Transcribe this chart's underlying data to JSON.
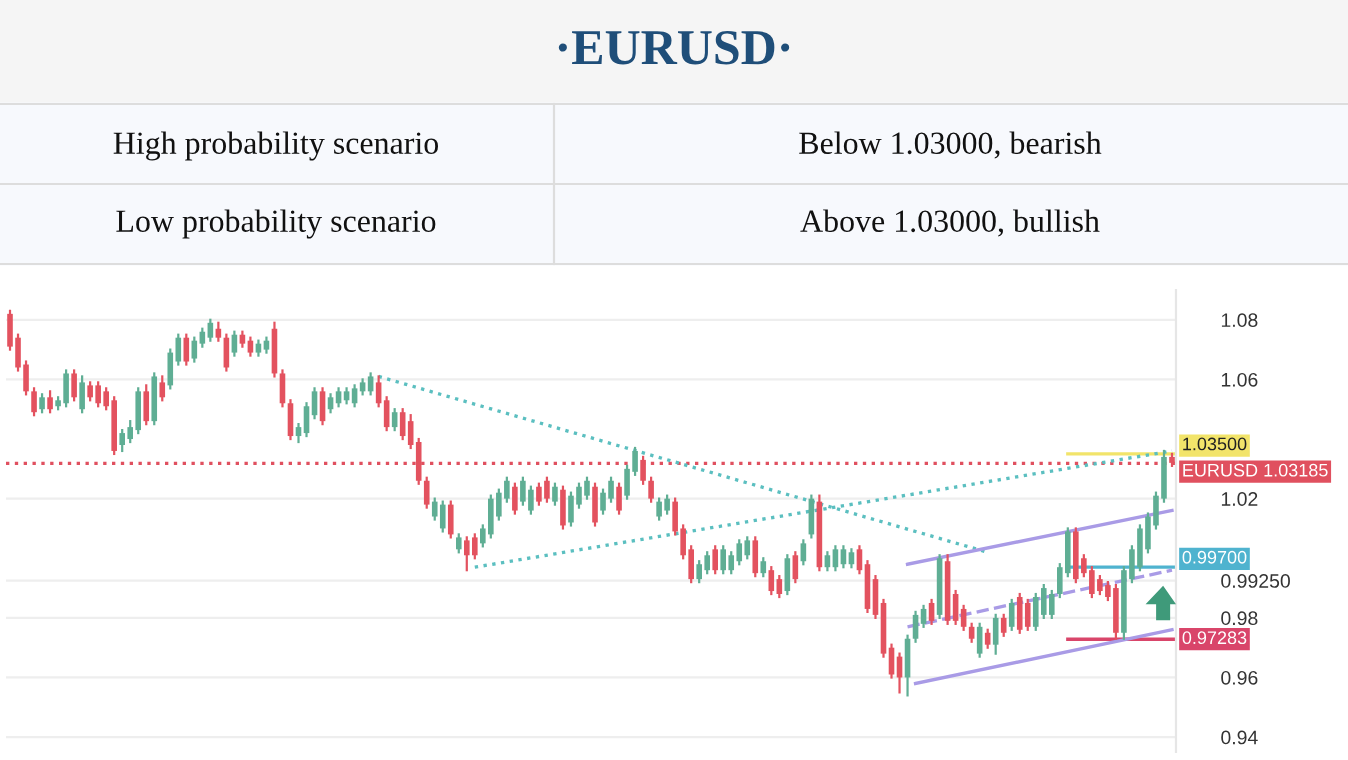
{
  "chart_data": {
    "type": "candlestick",
    "title": "·EURUSD·",
    "annotations": [
      "High probability scenario",
      "Below 1.03000, bearish",
      "Low probability scenario",
      "Above 1.03000, bullish"
    ],
    "categories": [
      null,
      null,
      null,
      null,
      null,
      null,
      null,
      null,
      null,
      null,
      null,
      null,
      null,
      null,
      null,
      null,
      null,
      null,
      null,
      null,
      null,
      null,
      null,
      null,
      null,
      null,
      null,
      null,
      null,
      null,
      null,
      null,
      null,
      null,
      null,
      null,
      null,
      null,
      null,
      null,
      null,
      null,
      null,
      null,
      null,
      null,
      null,
      null,
      null,
      null,
      null,
      null,
      null,
      null,
      null,
      null,
      null,
      null,
      null,
      null,
      null,
      null,
      null,
      null,
      null,
      null,
      null,
      null,
      null,
      null,
      null,
      null,
      null,
      null,
      null,
      null,
      null,
      null,
      null,
      null,
      null,
      null,
      null,
      null,
      null,
      null,
      null,
      null,
      null,
      null,
      null,
      null,
      null,
      null,
      null,
      null,
      null,
      null,
      null,
      null,
      null,
      null,
      null,
      null,
      null,
      null,
      null,
      null,
      null,
      null,
      null,
      null,
      null,
      null,
      null,
      null,
      null,
      null,
      null,
      null,
      null,
      null,
      null,
      null,
      null,
      null,
      null,
      null,
      null,
      null,
      null,
      null,
      null,
      null,
      null,
      null,
      null,
      null,
      null,
      null,
      null,
      null,
      null,
      null,
      null,
      null
    ],
    "ohlc": [
      [
        1.082,
        1.083,
        1.07,
        1.071
      ],
      [
        1.074,
        1.075,
        1.063,
        1.064
      ],
      [
        1.065,
        1.066,
        1.055,
        1.056
      ],
      [
        1.056,
        1.057,
        1.048,
        1.049
      ],
      [
        1.05,
        1.055,
        1.049,
        1.054
      ],
      [
        1.054,
        1.056,
        1.049,
        1.05
      ],
      [
        1.051,
        1.054,
        1.05,
        1.053
      ],
      [
        1.052,
        1.063,
        1.051,
        1.062
      ],
      [
        1.062,
        1.063,
        1.053,
        1.054
      ],
      [
        1.05,
        1.061,
        1.049,
        1.059
      ],
      [
        1.058,
        1.059,
        1.053,
        1.054
      ],
      [
        1.058,
        1.059,
        1.051,
        1.052
      ],
      [
        1.056,
        1.057,
        1.05,
        1.051
      ],
      [
        1.053,
        1.054,
        1.035,
        1.036
      ],
      [
        1.038,
        1.043,
        1.036,
        1.042
      ],
      [
        1.04,
        1.046,
        1.039,
        1.044
      ],
      [
        1.043,
        1.057,
        1.042,
        1.056
      ],
      [
        1.056,
        1.058,
        1.045,
        1.046
      ],
      [
        1.046,
        1.062,
        1.045,
        1.061
      ],
      [
        1.059,
        1.061,
        1.053,
        1.054
      ],
      [
        1.058,
        1.07,
        1.057,
        1.069
      ],
      [
        1.066,
        1.075,
        1.065,
        1.074
      ],
      [
        1.074,
        1.075,
        1.065,
        1.066
      ],
      [
        1.067,
        1.074,
        1.066,
        1.073
      ],
      [
        1.072,
        1.077,
        1.071,
        1.076
      ],
      [
        1.074,
        1.08,
        1.073,
        1.079
      ],
      [
        1.077,
        1.079,
        1.073,
        1.074
      ],
      [
        1.074,
        1.075,
        1.063,
        1.064
      ],
      [
        1.069,
        1.076,
        1.068,
        1.075
      ],
      [
        1.075,
        1.076,
        1.071,
        1.072
      ],
      [
        1.073,
        1.074,
        1.068,
        1.069
      ],
      [
        1.069,
        1.073,
        1.068,
        1.072
      ],
      [
        1.07,
        1.074,
        1.069,
        1.073
      ],
      [
        1.077,
        1.079,
        1.061,
        1.062
      ],
      [
        1.062,
        1.063,
        1.051,
        1.052
      ],
      [
        1.052,
        1.053,
        1.04,
        1.041
      ],
      [
        1.041,
        1.045,
        1.039,
        1.044
      ],
      [
        1.042,
        1.052,
        1.041,
        1.051
      ],
      [
        1.048,
        1.057,
        1.047,
        1.056
      ],
      [
        1.056,
        1.057,
        1.045,
        1.046
      ],
      [
        1.05,
        1.055,
        1.049,
        1.054
      ],
      [
        1.052,
        1.057,
        1.051,
        1.056
      ],
      [
        1.053,
        1.057,
        1.052,
        1.056
      ],
      [
        1.052,
        1.058,
        1.051,
        1.057
      ],
      [
        1.056,
        1.06,
        1.055,
        1.059
      ],
      [
        1.056,
        1.062,
        1.055,
        1.061
      ],
      [
        1.059,
        1.061,
        1.051,
        1.052
      ],
      [
        1.053,
        1.054,
        1.043,
        1.044
      ],
      [
        1.044,
        1.05,
        1.043,
        1.049
      ],
      [
        1.049,
        1.05,
        1.04,
        1.041
      ],
      [
        1.046,
        1.048,
        1.037,
        1.038
      ],
      [
        1.039,
        1.04,
        1.025,
        1.026
      ],
      [
        1.026,
        1.027,
        1.017,
        1.018
      ],
      [
        1.014,
        1.02,
        1.013,
        1.019
      ],
      [
        1.01,
        1.019,
        1.009,
        1.018
      ],
      [
        1.018,
        1.019,
        1.007,
        1.008
      ],
      [
        1.003,
        1.008,
        1.002,
        1.007
      ],
      [
        1.006,
        1.007,
        0.996,
        1.001
      ],
      [
        1.007,
        1.008,
        1.0,
        1.001
      ],
      [
        1.005,
        1.011,
        1.004,
        1.01
      ],
      [
        1.008,
        1.021,
        1.007,
        1.02
      ],
      [
        1.014,
        1.023,
        1.013,
        1.022
      ],
      [
        1.02,
        1.027,
        1.019,
        1.026
      ],
      [
        1.024,
        1.025,
        1.015,
        1.016
      ],
      [
        1.019,
        1.027,
        1.018,
        1.026
      ],
      [
        1.016,
        1.024,
        1.015,
        1.023
      ],
      [
        1.024,
        1.025,
        1.018,
        1.019
      ],
      [
        1.026,
        1.027,
        1.019,
        1.02
      ],
      [
        1.019,
        1.025,
        1.018,
        1.024
      ],
      [
        1.023,
        1.024,
        1.01,
        1.011
      ],
      [
        1.012,
        1.022,
        1.011,
        1.021
      ],
      [
        1.018,
        1.025,
        1.017,
        1.024
      ],
      [
        1.021,
        1.027,
        1.02,
        1.026
      ],
      [
        1.024,
        1.025,
        1.011,
        1.012
      ],
      [
        1.016,
        1.023,
        1.015,
        1.022
      ],
      [
        1.02,
        1.027,
        1.019,
        1.026
      ],
      [
        1.024,
        1.025,
        1.015,
        1.016
      ],
      [
        1.021,
        1.031,
        1.02,
        1.03
      ],
      [
        1.029,
        1.037,
        1.028,
        1.036
      ],
      [
        1.033,
        1.034,
        1.025,
        1.026
      ],
      [
        1.026,
        1.027,
        1.019,
        1.02
      ],
      [
        1.014,
        1.02,
        1.013,
        1.019
      ],
      [
        1.016,
        1.021,
        1.015,
        1.02
      ],
      [
        1.019,
        1.02,
        1.008,
        1.009
      ],
      [
        1.01,
        1.011,
        1.0,
        1.001
      ],
      [
        1.003,
        1.004,
        0.992,
        0.993
      ],
      [
        0.993,
        0.999,
        0.992,
        0.998
      ],
      [
        0.996,
        1.002,
        0.995,
        1.001
      ],
      [
        1.003,
        1.004,
        0.995,
        0.996
      ],
      [
        0.996,
        1.004,
        0.995,
        1.003
      ],
      [
        0.996,
        1.002,
        0.995,
        1.001
      ],
      [
        0.999,
        1.006,
        0.998,
        1.005
      ],
      [
        1.001,
        1.007,
        1.0,
        1.006
      ],
      [
        1.006,
        1.007,
        0.994,
        0.995
      ],
      [
        0.995,
        1.0,
        0.994,
        0.999
      ],
      [
        0.996,
        0.997,
        0.988,
        0.989
      ],
      [
        0.993,
        0.994,
        0.987,
        0.988
      ],
      [
        0.989,
        1.001,
        0.988,
        1.0
      ],
      [
        1.001,
        1.002,
        0.992,
        0.993
      ],
      [
        0.999,
        1.006,
        0.998,
        1.005
      ],
      [
        1.008,
        1.021,
        1.007,
        1.02
      ],
      [
        1.019,
        1.021,
        0.996,
        0.997
      ],
      [
        0.997,
        1.002,
        0.996,
        1.001
      ],
      [
        0.997,
        1.004,
        0.996,
        1.003
      ],
      [
        0.998,
        1.004,
        0.997,
        1.003
      ],
      [
        0.998,
        1.003,
        0.997,
        1.002
      ],
      [
        1.003,
        1.004,
        0.995,
        0.996
      ],
      [
        0.998,
        0.999,
        0.982,
        0.983
      ],
      [
        0.993,
        0.994,
        0.98,
        0.981
      ],
      [
        0.985,
        0.986,
        0.967,
        0.968
      ],
      [
        0.97,
        0.971,
        0.96,
        0.961
      ],
      [
        0.967,
        0.968,
        0.955,
        0.96
      ],
      [
        0.96,
        0.974,
        0.954,
        0.973
      ],
      [
        0.973,
        0.982,
        0.972,
        0.981
      ],
      [
        0.978,
        0.984,
        0.977,
        0.983
      ],
      [
        0.985,
        0.986,
        0.978,
        0.979
      ],
      [
        0.981,
        1.001,
        0.98,
        1.0
      ],
      [
        0.999,
        1.001,
        0.978,
        0.979
      ],
      [
        0.988,
        0.989,
        0.978,
        0.979
      ],
      [
        0.983,
        0.984,
        0.976,
        0.977
      ],
      [
        0.977,
        0.978,
        0.972,
        0.973
      ],
      [
        0.968,
        0.978,
        0.967,
        0.977
      ],
      [
        0.975,
        0.976,
        0.97,
        0.971
      ],
      [
        0.971,
        0.981,
        0.968,
        0.98
      ],
      [
        0.98,
        0.981,
        0.974,
        0.975
      ],
      [
        0.977,
        0.986,
        0.976,
        0.985
      ],
      [
        0.987,
        0.988,
        0.975,
        0.976
      ],
      [
        0.985,
        0.986,
        0.976,
        0.977
      ],
      [
        0.977,
        0.988,
        0.976,
        0.987
      ],
      [
        0.981,
        0.991,
        0.98,
        0.99
      ],
      [
        0.981,
        0.989,
        0.98,
        0.988
      ],
      [
        0.988,
        0.998,
        0.987,
        0.997
      ],
      [
        0.995,
        1.01,
        0.994,
        1.009
      ],
      [
        1.009,
        1.01,
        0.992,
        0.993
      ],
      [
        1.0,
        1.001,
        0.994,
        0.995
      ],
      [
        0.996,
        0.997,
        0.987,
        0.988
      ],
      [
        0.993,
        0.994,
        0.988,
        0.989
      ],
      [
        0.991,
        0.992,
        0.986,
        0.987
      ],
      [
        0.99,
        0.991,
        0.973,
        0.975
      ],
      [
        0.975,
        0.997,
        0.973,
        0.996
      ],
      [
        0.993,
        1.004,
        0.992,
        1.003
      ],
      [
        0.997,
        1.011,
        0.996,
        1.01
      ],
      [
        1.003,
        1.015,
        1.002,
        1.014
      ],
      [
        1.011,
        1.022,
        1.01,
        1.021
      ],
      [
        1.02,
        1.036,
        1.019,
        1.034
      ],
      [
        1.034,
        1.035,
        1.031,
        1.032
      ]
    ],
    "series": [
      {
        "type": "line",
        "color": "#5bbfc0",
        "line_style": "dotted",
        "values": [
          null,
          null,
          null,
          null,
          null,
          null,
          null,
          null,
          null,
          null,
          null,
          null,
          null,
          null,
          null,
          null,
          null,
          null,
          null,
          null,
          null,
          null,
          null,
          null,
          null,
          null,
          null,
          null,
          null,
          null,
          null,
          null,
          null,
          null,
          null,
          null,
          null,
          null,
          null,
          null,
          null,
          null,
          null,
          null,
          null,
          null,
          1.061,
          null,
          null,
          null,
          null,
          null,
          null,
          null,
          null,
          null,
          null,
          null,
          null,
          null,
          null,
          null,
          null,
          null,
          null,
          null,
          null,
          null,
          null,
          null,
          null,
          null,
          null,
          null,
          null,
          null,
          null,
          null,
          null,
          null,
          null,
          null,
          null,
          null,
          null,
          null,
          null,
          null,
          null,
          null,
          null,
          null,
          null,
          null,
          null,
          null,
          null,
          null,
          null,
          null,
          null,
          null,
          null,
          null,
          null,
          null,
          null,
          null,
          null,
          null,
          null,
          null,
          null,
          null,
          null,
          null,
          null,
          null,
          null,
          null,
          null,
          null,
          1.002,
          null,
          null,
          null,
          null,
          null,
          null,
          null,
          null,
          null,
          null,
          null,
          null,
          null,
          null,
          null,
          null,
          null,
          null,
          null,
          null,
          null,
          null,
          null
        ]
      },
      {
        "type": "line",
        "color": "#5bbfc0",
        "line_style": "dotted",
        "values": [
          null,
          null,
          null,
          null,
          null,
          null,
          null,
          null,
          null,
          null,
          null,
          null,
          null,
          null,
          null,
          null,
          null,
          null,
          null,
          null,
          null,
          null,
          null,
          null,
          null,
          null,
          null,
          null,
          null,
          null,
          null,
          null,
          null,
          null,
          null,
          null,
          null,
          null,
          null,
          null,
          null,
          null,
          null,
          null,
          null,
          null,
          null,
          null,
          null,
          null,
          null,
          null,
          null,
          null,
          null,
          null,
          null,
          null,
          0.997,
          null,
          null,
          null,
          null,
          null,
          null,
          null,
          null,
          null,
          null,
          null,
          null,
          null,
          null,
          null,
          null,
          null,
          null,
          null,
          null,
          null,
          null,
          null,
          null,
          null,
          null,
          null,
          null,
          null,
          null,
          null,
          null,
          null,
          null,
          null,
          null,
          null,
          null,
          null,
          null,
          null,
          null,
          null,
          null,
          null,
          null,
          null,
          null,
          null,
          null,
          null,
          null,
          null,
          null,
          null,
          null,
          null,
          null,
          null,
          null,
          null,
          null,
          null,
          null,
          null,
          null,
          null,
          null,
          null,
          null,
          null,
          null,
          null,
          null,
          null,
          null,
          null,
          null,
          null,
          null,
          null,
          null,
          null,
          null,
          null,
          null,
          1.036
        ]
      },
      {
        "type": "line",
        "color": "#a99be6",
        "line_style": "solid",
        "values": [
          null,
          null,
          null,
          null,
          null,
          null,
          null,
          null,
          null,
          null,
          null,
          null,
          null,
          null,
          null,
          null,
          null,
          null,
          null,
          null,
          null,
          null,
          null,
          null,
          null,
          null,
          null,
          null,
          null,
          null,
          null,
          null,
          null,
          null,
          null,
          null,
          null,
          null,
          null,
          null,
          null,
          null,
          null,
          null,
          null,
          null,
          null,
          null,
          null,
          null,
          null,
          null,
          null,
          null,
          null,
          null,
          null,
          null,
          null,
          null,
          null,
          null,
          null,
          null,
          null,
          null,
          null,
          null,
          null,
          null,
          null,
          null,
          null,
          null,
          null,
          null,
          null,
          null,
          null,
          null,
          null,
          null,
          null,
          null,
          null,
          null,
          null,
          null,
          null,
          null,
          null,
          null,
          null,
          null,
          null,
          null,
          null,
          null,
          null,
          null,
          null,
          null,
          null,
          null,
          null,
          null,
          null,
          null,
          null,
          null,
          null,
          null,
          0.998,
          null,
          null,
          null,
          null,
          null,
          null,
          null,
          null,
          null,
          null,
          null,
          null,
          null,
          null,
          null,
          null,
          null,
          null,
          null,
          null,
          null,
          null,
          null,
          null,
          null,
          null,
          null,
          null,
          null,
          null,
          null,
          null,
          1.016
        ]
      },
      {
        "type": "line",
        "color": "#a99be6",
        "line_style": "dashed",
        "values": [
          null,
          null,
          null,
          null,
          null,
          null,
          null,
          null,
          null,
          null,
          null,
          null,
          null,
          null,
          null,
          null,
          null,
          null,
          null,
          null,
          null,
          null,
          null,
          null,
          null,
          null,
          null,
          null,
          null,
          null,
          null,
          null,
          null,
          null,
          null,
          null,
          null,
          null,
          null,
          null,
          null,
          null,
          null,
          null,
          null,
          null,
          null,
          null,
          null,
          null,
          null,
          null,
          null,
          null,
          null,
          null,
          null,
          null,
          null,
          null,
          null,
          null,
          null,
          null,
          null,
          null,
          null,
          null,
          null,
          null,
          null,
          null,
          null,
          null,
          null,
          null,
          null,
          null,
          null,
          null,
          null,
          null,
          null,
          null,
          null,
          null,
          null,
          null,
          null,
          null,
          null,
          null,
          null,
          null,
          null,
          null,
          null,
          null,
          null,
          null,
          null,
          null,
          null,
          null,
          null,
          null,
          null,
          null,
          null,
          null,
          null,
          null,
          0.977,
          null,
          null,
          null,
          null,
          null,
          null,
          null,
          null,
          null,
          null,
          null,
          null,
          null,
          null,
          null,
          null,
          null,
          null,
          null,
          null,
          null,
          null,
          null,
          null,
          null,
          null,
          null,
          null,
          null,
          null,
          null,
          null,
          0.996
        ]
      },
      {
        "type": "line",
        "color": "#a99be6",
        "line_style": "solid",
        "values": [
          null,
          null,
          null,
          null,
          null,
          null,
          null,
          null,
          null,
          null,
          null,
          null,
          null,
          null,
          null,
          null,
          null,
          null,
          null,
          null,
          null,
          null,
          null,
          null,
          null,
          null,
          null,
          null,
          null,
          null,
          null,
          null,
          null,
          null,
          null,
          null,
          null,
          null,
          null,
          null,
          null,
          null,
          null,
          null,
          null,
          null,
          null,
          null,
          null,
          null,
          null,
          null,
          null,
          null,
          null,
          null,
          null,
          null,
          null,
          null,
          null,
          null,
          null,
          null,
          null,
          null,
          null,
          null,
          null,
          null,
          null,
          null,
          null,
          null,
          null,
          null,
          null,
          null,
          null,
          null,
          null,
          null,
          null,
          null,
          null,
          null,
          null,
          null,
          null,
          null,
          null,
          null,
          null,
          null,
          null,
          null,
          null,
          null,
          null,
          null,
          null,
          null,
          null,
          null,
          null,
          null,
          null,
          null,
          null,
          null,
          null,
          null,
          null,
          0.958,
          null,
          null,
          null,
          null,
          null,
          null,
          null,
          null,
          null,
          null,
          null,
          null,
          null,
          null,
          null,
          null,
          null,
          null,
          null,
          null,
          null,
          null,
          null,
          null,
          null,
          null,
          null,
          null,
          null,
          null,
          null,
          0.976
        ]
      }
    ],
    "ref_lines": [
      {
        "axis": "y",
        "value": 1.035,
        "label": "1.03500",
        "color": "#f2e46a",
        "line_style": "solid"
      },
      {
        "axis": "y",
        "value": 1.03185,
        "label": "EURUSD 1.03185",
        "color": "#e0505f",
        "line_style": "dotted"
      },
      {
        "axis": "y",
        "value": 0.997,
        "label": "0.99700",
        "color": "#4fb3cf",
        "line_style": "solid"
      },
      {
        "axis": "y",
        "value": 0.97283,
        "label": "0.97283",
        "color": "#d9456a",
        "line_style": "solid"
      }
    ],
    "ylim": [
      0.935,
      1.09
    ],
    "yticks": [
      0.94,
      0.96,
      0.98,
      {
        "value": 0.9925,
        "label": "0.99250"
      },
      1.02,
      1.06,
      1.08
    ],
    "grid": "y",
    "tick_labels": "y"
  }
}
